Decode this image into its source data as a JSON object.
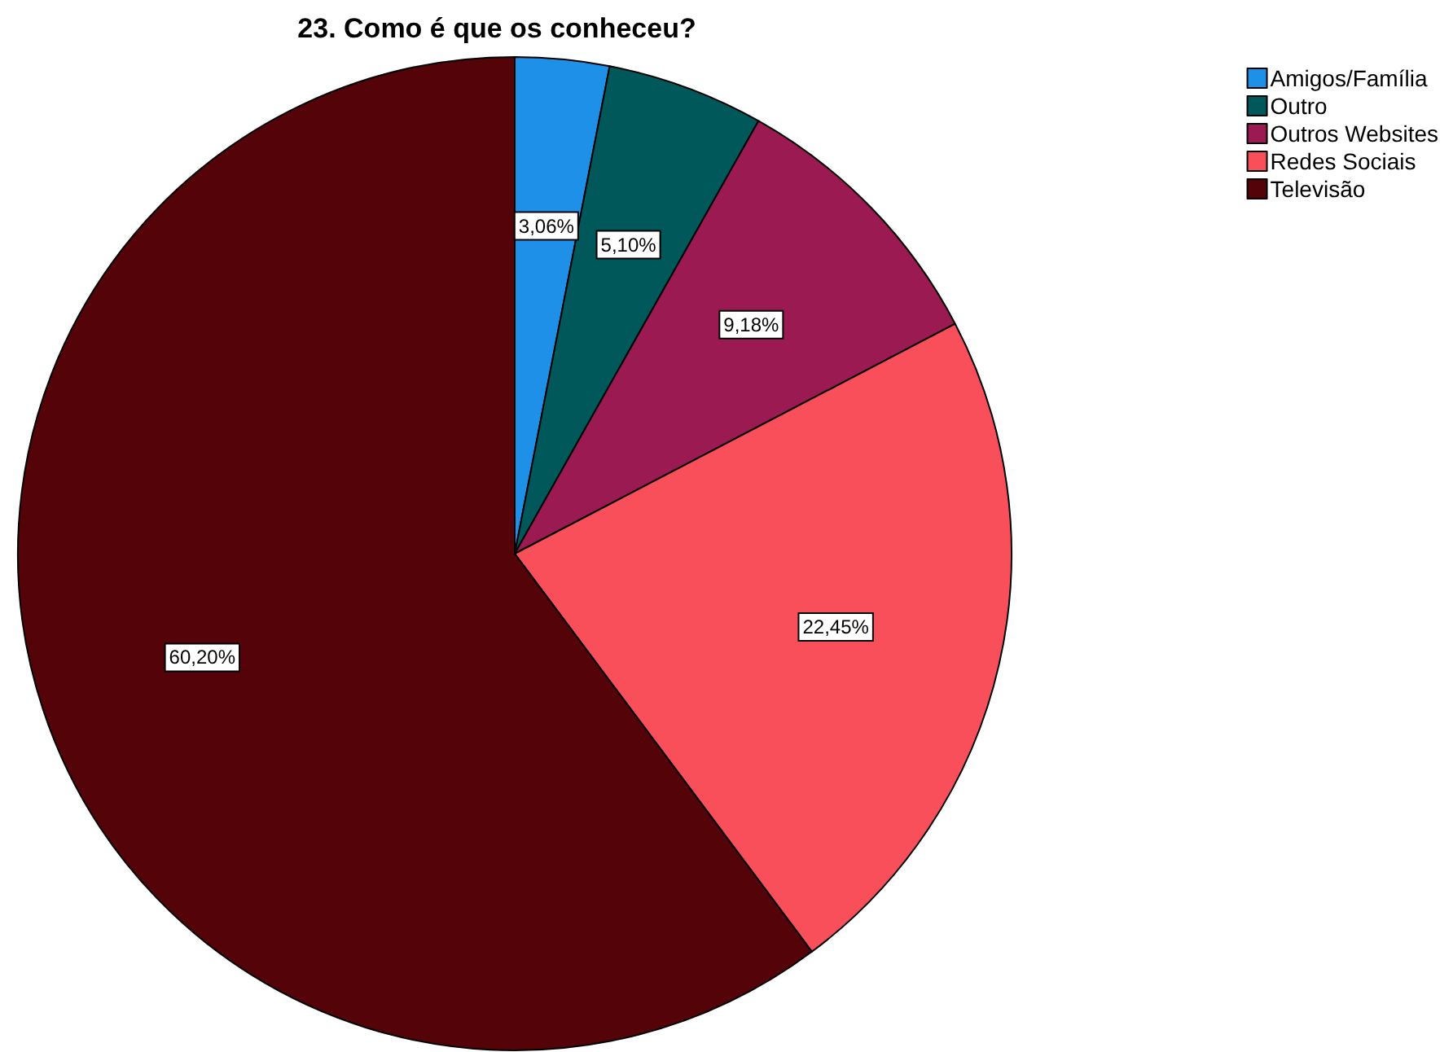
{
  "chart_data": {
    "type": "pie",
    "title": "23. Como é que os conheceu?",
    "categories": [
      "Amigos/Família",
      "Outro",
      "Outros Websites",
      "Redes Sociais",
      "Televisão"
    ],
    "values": [
      3.06,
      5.1,
      9.18,
      22.45,
      60.2
    ],
    "value_labels": [
      "3,06%",
      "5,10%",
      "9,18%",
      "22,45%",
      "60,20%"
    ],
    "colors": [
      "#1e90e8",
      "#00585a",
      "#9c1a52",
      "#f94f5b",
      "#540309"
    ],
    "legend": "top right"
  }
}
